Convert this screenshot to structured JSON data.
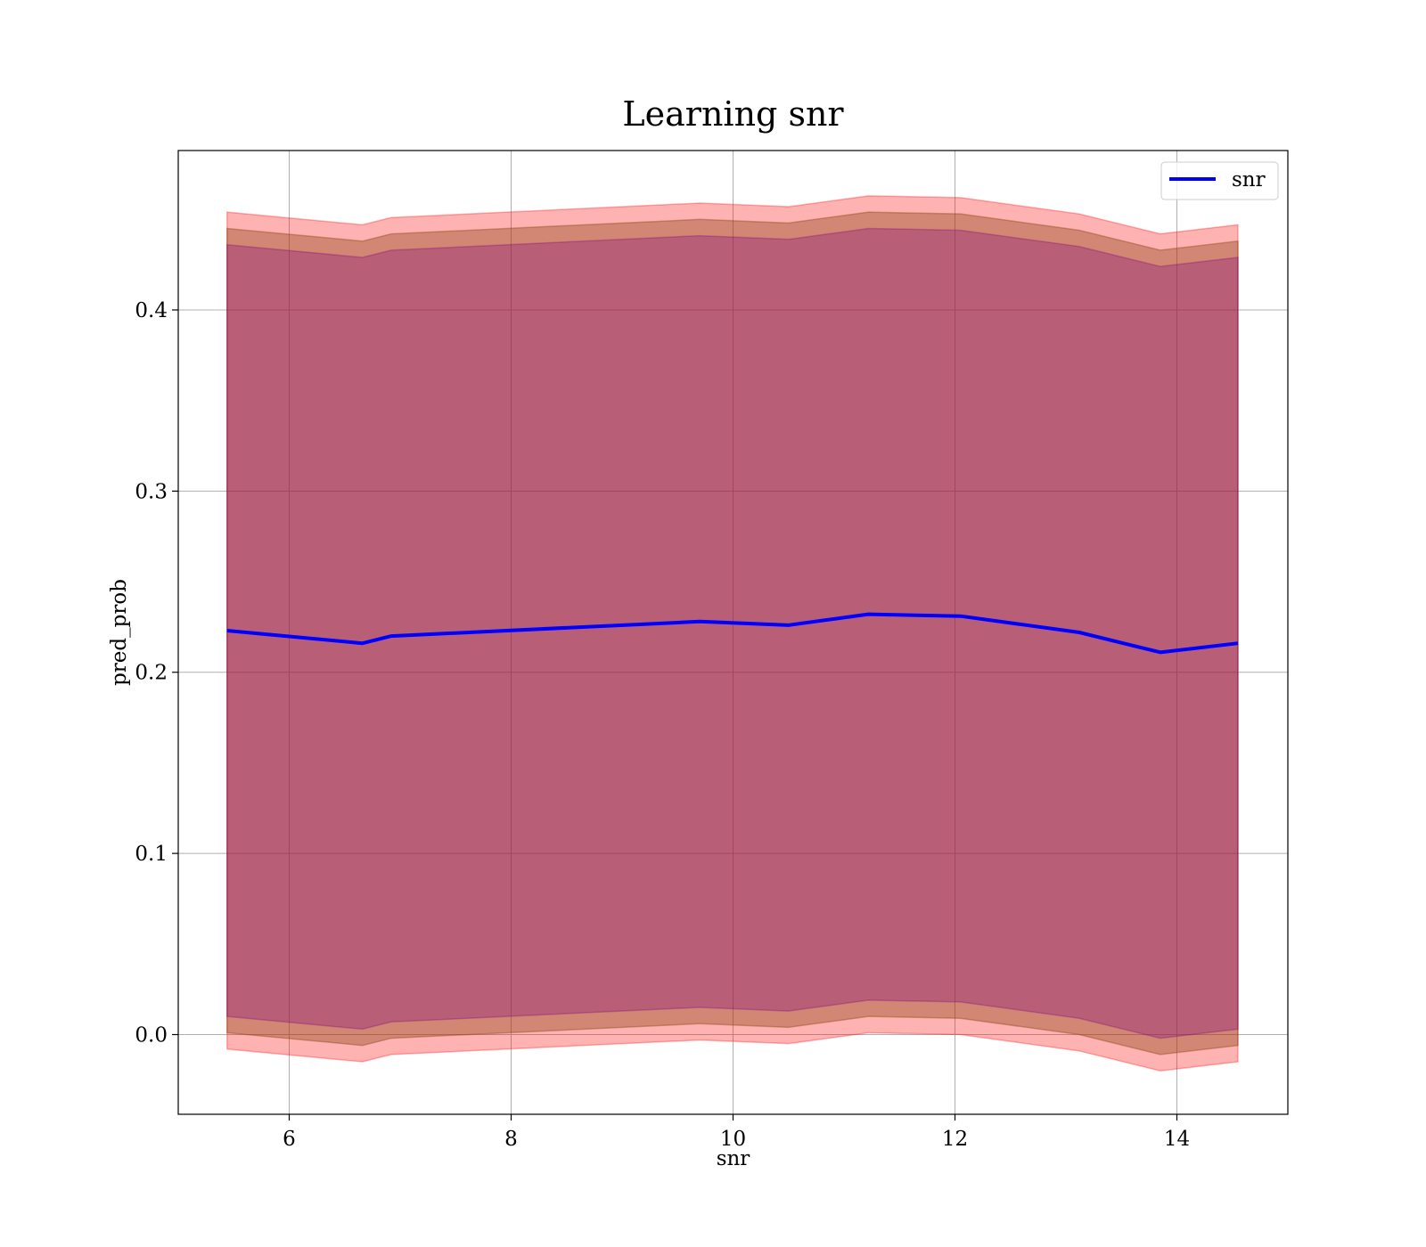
{
  "chart_data": {
    "type": "line",
    "title": "Learning snr",
    "xlabel": "snr",
    "ylabel": "pred_prob",
    "xlim": [
      5.0,
      15.0
    ],
    "ylim": [
      -0.044,
      0.488
    ],
    "xticks": [
      6,
      8,
      10,
      12,
      14
    ],
    "xtick_labels": [
      "6",
      "8",
      "10",
      "12",
      "14"
    ],
    "yticks": [
      0.0,
      0.1,
      0.2,
      0.3,
      0.4
    ],
    "ytick_labels": [
      "0.0",
      "0.1",
      "0.2",
      "0.3",
      "0.4"
    ],
    "grid": true,
    "legend_position": "top-right",
    "x": [
      5.44,
      6.66,
      6.92,
      9.7,
      10.5,
      11.22,
      12.05,
      13.12,
      13.85,
      14.55
    ],
    "series": [
      {
        "name": "snr",
        "color": "#0000ff",
        "values": [
          0.223,
          0.216,
          0.22,
          0.228,
          0.226,
          0.232,
          0.231,
          0.222,
          0.211,
          0.216
        ]
      }
    ],
    "bands": [
      {
        "role": "outer",
        "color": "#ff0000",
        "opacity": 0.3,
        "upper": [
          0.454,
          0.447,
          0.451,
          0.459,
          0.457,
          0.463,
          0.462,
          0.453,
          0.442,
          0.447
        ],
        "lower": [
          -0.008,
          -0.015,
          -0.011,
          -0.003,
          -0.005,
          0.001,
          0.0,
          -0.009,
          -0.02,
          -0.015
        ]
      },
      {
        "role": "middle",
        "color": "#8b4513",
        "opacity": 0.4,
        "upper": [
          0.445,
          0.438,
          0.442,
          0.45,
          0.448,
          0.454,
          0.453,
          0.444,
          0.433,
          0.438
        ],
        "lower": [
          0.001,
          -0.006,
          -0.002,
          0.006,
          0.004,
          0.01,
          0.009,
          0.0,
          -0.011,
          -0.006
        ]
      },
      {
        "role": "inner",
        "color": "#800080",
        "opacity": 0.3,
        "upper": [
          0.436,
          0.429,
          0.433,
          0.441,
          0.439,
          0.445,
          0.444,
          0.435,
          0.424,
          0.429
        ],
        "lower": [
          0.01,
          0.003,
          0.007,
          0.015,
          0.013,
          0.019,
          0.018,
          0.009,
          -0.002,
          0.003
        ]
      }
    ]
  }
}
